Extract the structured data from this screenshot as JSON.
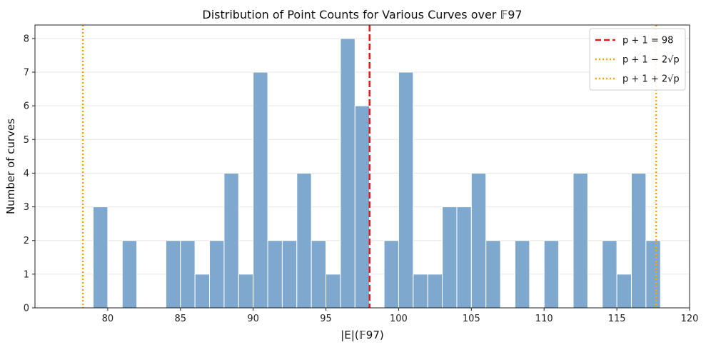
{
  "chart_data": {
    "type": "bar",
    "title": "Distribution of Point Counts for Various Curves over 𝔽97",
    "xlabel": "|E|(𝔽97)",
    "ylabel": "Number of curves",
    "xlim": [
      75,
      120
    ],
    "ylim": [
      0,
      8.4
    ],
    "x_ticks": [
      80,
      85,
      90,
      95,
      100,
      105,
      110,
      115,
      120
    ],
    "y_ticks": [
      0,
      1,
      2,
      3,
      4,
      5,
      6,
      7,
      8
    ],
    "grid": "horizontal",
    "legend_position": "top-right",
    "bar_color": "#7fa8cf",
    "bins": [
      {
        "x0": 79,
        "x1": 80,
        "count": 3
      },
      {
        "x0": 81,
        "x1": 82,
        "count": 2
      },
      {
        "x0": 84,
        "x1": 85,
        "count": 2
      },
      {
        "x0": 85,
        "x1": 86,
        "count": 2
      },
      {
        "x0": 86,
        "x1": 87,
        "count": 1
      },
      {
        "x0": 87,
        "x1": 88,
        "count": 2
      },
      {
        "x0": 88,
        "x1": 89,
        "count": 4
      },
      {
        "x0": 89,
        "x1": 90,
        "count": 1
      },
      {
        "x0": 90,
        "x1": 91,
        "count": 7
      },
      {
        "x0": 91,
        "x1": 92,
        "count": 2
      },
      {
        "x0": 92,
        "x1": 93,
        "count": 2
      },
      {
        "x0": 93,
        "x1": 94,
        "count": 4
      },
      {
        "x0": 94,
        "x1": 95,
        "count": 2
      },
      {
        "x0": 95,
        "x1": 96,
        "count": 1
      },
      {
        "x0": 96,
        "x1": 97,
        "count": 8
      },
      {
        "x0": 97,
        "x1": 98,
        "count": 6
      },
      {
        "x0": 99,
        "x1": 100,
        "count": 2
      },
      {
        "x0": 100,
        "x1": 101,
        "count": 7
      },
      {
        "x0": 101,
        "x1": 102,
        "count": 1
      },
      {
        "x0": 102,
        "x1": 103,
        "count": 1
      },
      {
        "x0": 103,
        "x1": 104,
        "count": 3
      },
      {
        "x0": 104,
        "x1": 105,
        "count": 3
      },
      {
        "x0": 105,
        "x1": 106,
        "count": 4
      },
      {
        "x0": 106,
        "x1": 107,
        "count": 2
      },
      {
        "x0": 108,
        "x1": 109,
        "count": 2
      },
      {
        "x0": 110,
        "x1": 111,
        "count": 2
      },
      {
        "x0": 112,
        "x1": 113,
        "count": 4
      },
      {
        "x0": 114,
        "x1": 115,
        "count": 2
      },
      {
        "x0": 115,
        "x1": 116,
        "count": 1
      },
      {
        "x0": 116,
        "x1": 117,
        "count": 4
      },
      {
        "x0": 117,
        "x1": 118,
        "count": 2
      }
    ],
    "reference_lines": [
      {
        "name": "p + 1 = 98",
        "x": 98,
        "color": "#e31a1c",
        "style": "dashed"
      },
      {
        "name": "p + 1 − 2√p",
        "x": 78.3,
        "color": "#ffa500",
        "style": "dotted"
      },
      {
        "name": "p + 1 + 2√p",
        "x": 117.7,
        "color": "#ffa500",
        "style": "dotted"
      }
    ]
  }
}
